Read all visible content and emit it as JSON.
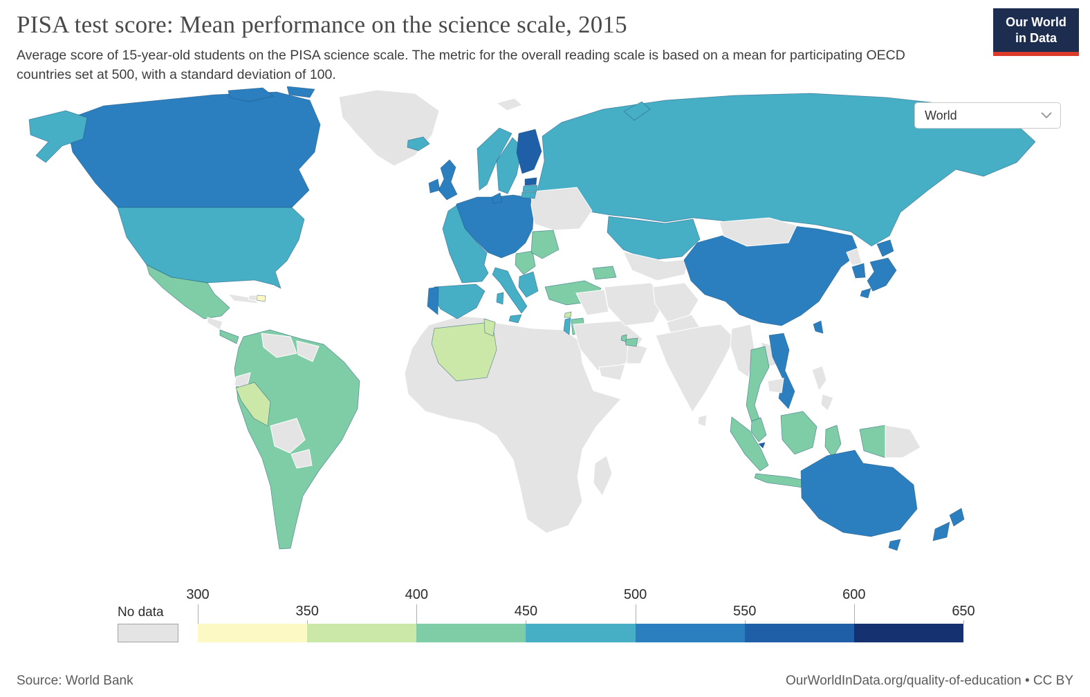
{
  "header": {
    "title": "PISA test score: Mean performance on the science scale, 2015",
    "subtitle": "Average score of 15-year-old students on the PISA science scale. The metric for the overall reading scale is based on a mean for participating OECD countries set at 500, with a standard deviation of 100.",
    "logo": {
      "line1": "Our World",
      "line2": "in Data",
      "bg": "#1d2d4f",
      "accent": "#dc3b2a"
    }
  },
  "controls": {
    "region_selector": "World"
  },
  "footer": {
    "source": "Source: World Bank",
    "attribution": "OurWorldInData.org/quality-of-education • CC BY"
  },
  "chart_data": {
    "type": "choropleth_map",
    "title": "PISA test score: Mean performance on the science scale",
    "year": "2015",
    "unit": "mean PISA science score",
    "legend": {
      "no_data_label": "No data",
      "ticks": [
        300,
        350,
        400,
        450,
        500,
        550,
        600,
        650
      ],
      "palette": {
        "no-data": "#e4e4e4",
        "300-350": "#fdf9c4",
        "350-400": "#cbe8a9",
        "400-450": "#7ecda6",
        "450-500": "#46aec5",
        "500-550": "#2c7fbe",
        "550-600": "#1f5fa8",
        "600-650": "#16316f"
      }
    },
    "country_values": {
      "greenland": "no-data",
      "canada": "500-550",
      "united-states": "450-500",
      "mexico": "400-450",
      "guatemala-honduras": "no-data",
      "costa-rica-panama": "400-450",
      "cuba": "no-data",
      "haiti": "no-data",
      "dominican-republic": "300-350",
      "south-america-group": "400-450",
      "venezuela": "no-data",
      "guyanas": "no-data",
      "ecuador": "no-data",
      "peru": "350-400",
      "bolivia": "no-data",
      "paraguay": "no-data",
      "iceland": "450-500",
      "norway": "450-500",
      "sweden": "450-500",
      "finland": "550-600",
      "denmark": "500-550",
      "estonia": "550-600",
      "latvia": "450-500",
      "lithuania": "450-500",
      "united-kingdom": "500-550",
      "ireland": "500-550",
      "europe-central-group": "500-550",
      "france": "450-500",
      "spain": "450-500",
      "portugal": "500-550",
      "italy": "450-500",
      "balkans-group": "400-450",
      "greece": "450-500",
      "romania-bulgaria": "400-450",
      "ukraine-belarus": "no-data",
      "turkey": "400-450",
      "georgia": "400-450",
      "russia": "450-500",
      "kazakhstan": "450-500",
      "central-asia-group": "no-data",
      "mongolia": "no-data",
      "china": "500-550",
      "north-korea": "no-data",
      "south-korea": "500-550",
      "japan": "500-550",
      "taiwan": "500-550",
      "india": "no-data",
      "sri-lanka": "no-data",
      "afghanistan": "no-data",
      "pakistan": "no-data",
      "iran": "no-data",
      "iraq-syria": "no-data",
      "saudi-arabia": "no-data",
      "yemen": "no-data",
      "oman": "no-data",
      "uae": "400-450",
      "qatar": "400-450",
      "israel": "450-500",
      "jordan": "400-450",
      "lebanon": "350-400",
      "africa-group": "no-data",
      "algeria": "350-400",
      "tunisia": "350-400",
      "madagascar": "no-data",
      "myanmar": "no-data",
      "laos": "no-data",
      "thailand": "400-450",
      "vietnam": "500-550",
      "cambodia": "no-data",
      "malaysia": "400-450",
      "singapore": "550-600",
      "indonesia": "400-450",
      "papua-new-guinea": "no-data",
      "philippines": "no-data",
      "australia": "500-550",
      "new-zealand": "500-550",
      "svalbard": "no-data"
    }
  }
}
